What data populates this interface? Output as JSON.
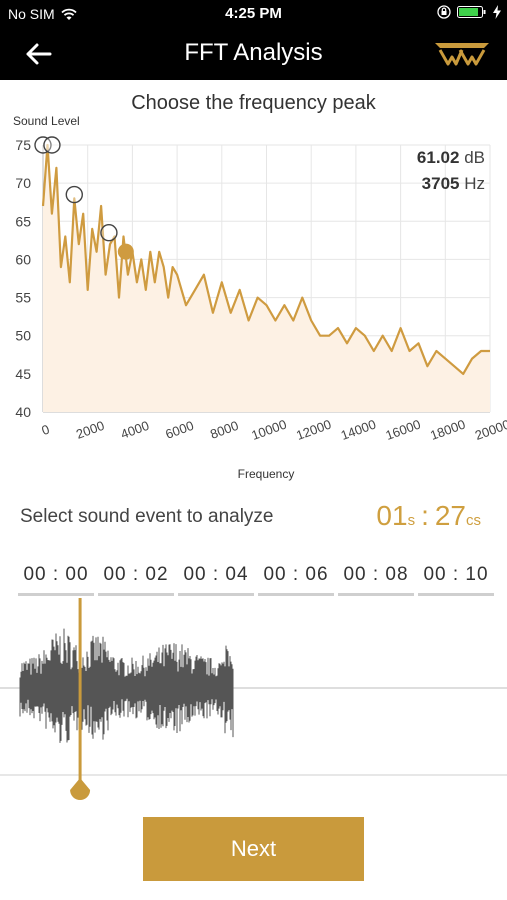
{
  "status_bar": {
    "carrier": "No SIM",
    "time": "4:25 PM",
    "icons": [
      "wifi-icon",
      "orientation-lock-icon",
      "battery-icon",
      "charging-icon"
    ]
  },
  "navbar": {
    "title": "FFT Analysis",
    "back_icon": "arrow-left-icon",
    "logo_icon": "brand-logo-icon"
  },
  "chart_title": "Choose the frequency peak",
  "readout": {
    "level_value": "61.02",
    "level_unit": "dB",
    "freq_value": "3705",
    "freq_unit": "Hz"
  },
  "chart_data": {
    "type": "line",
    "title": "Choose the frequency peak",
    "xlabel": "Frequency",
    "ylabel": "Sound Level",
    "xlim": [
      0,
      20000
    ],
    "ylim": [
      40,
      75
    ],
    "x_ticks": [
      "0",
      "2000",
      "4000",
      "6000",
      "8000",
      "10000",
      "12000",
      "14000",
      "16000",
      "18000",
      "20000"
    ],
    "y_ticks": [
      "40",
      "45",
      "50",
      "55",
      "60",
      "65",
      "70",
      "75"
    ],
    "grid": true,
    "fill": true,
    "colors": {
      "line": "#cf9b40",
      "fill": "#fdf1e4"
    },
    "x": [
      0,
      200,
      400,
      600,
      800,
      1000,
      1200,
      1400,
      1600,
      1800,
      2000,
      2200,
      2400,
      2600,
      2800,
      3000,
      3200,
      3400,
      3600,
      3800,
      4000,
      4200,
      4400,
      4600,
      4800,
      5000,
      5200,
      5400,
      5600,
      5800,
      6000,
      6400,
      6800,
      7200,
      7600,
      8000,
      8400,
      8800,
      9200,
      9600,
      10000,
      10400,
      10800,
      11200,
      11600,
      12000,
      12400,
      12800,
      13200,
      13600,
      14000,
      14400,
      14800,
      15200,
      15600,
      16000,
      16400,
      16800,
      17200,
      17600,
      18000,
      18400,
      18800,
      19200,
      19600,
      20000
    ],
    "values": [
      67,
      75,
      66,
      72,
      59,
      63,
      57,
      68,
      62,
      66,
      56,
      64,
      61,
      67,
      58,
      62,
      63,
      55,
      63,
      58,
      61,
      57,
      60,
      56,
      61,
      57,
      61,
      59,
      55,
      59,
      58,
      54,
      56,
      58,
      53,
      57,
      53,
      56,
      52,
      55,
      54,
      52,
      54,
      52,
      55,
      52,
      50,
      50,
      51,
      49,
      51,
      50,
      48,
      50,
      48,
      51,
      48,
      49,
      46,
      48,
      47,
      46,
      45,
      47,
      48,
      48
    ],
    "peak_markers": [
      {
        "x": 0,
        "y": 75,
        "selected": false
      },
      {
        "x": 400,
        "y": 75,
        "selected": false
      },
      {
        "x": 1400,
        "y": 68.5,
        "selected": false
      },
      {
        "x": 2950,
        "y": 63.5,
        "selected": false
      },
      {
        "x": 3705,
        "y": 61.02,
        "selected": true
      }
    ]
  },
  "select_label": "Select sound event to analyze",
  "timer": {
    "seconds": "01",
    "seconds_unit": "s",
    "separator": ":",
    "centis": "27",
    "centis_unit": "cs"
  },
  "timeline": {
    "labels": [
      "00 : 00",
      "00 : 02",
      "00 : 04",
      "00 : 06",
      "00 : 08",
      "00 : 10"
    ],
    "total_seconds": 10,
    "audio_end_seconds": 4.45,
    "playhead_seconds": 1.27
  },
  "waveform_color": "#555555",
  "accent_color": "#c99a3c",
  "next_button": "Next"
}
